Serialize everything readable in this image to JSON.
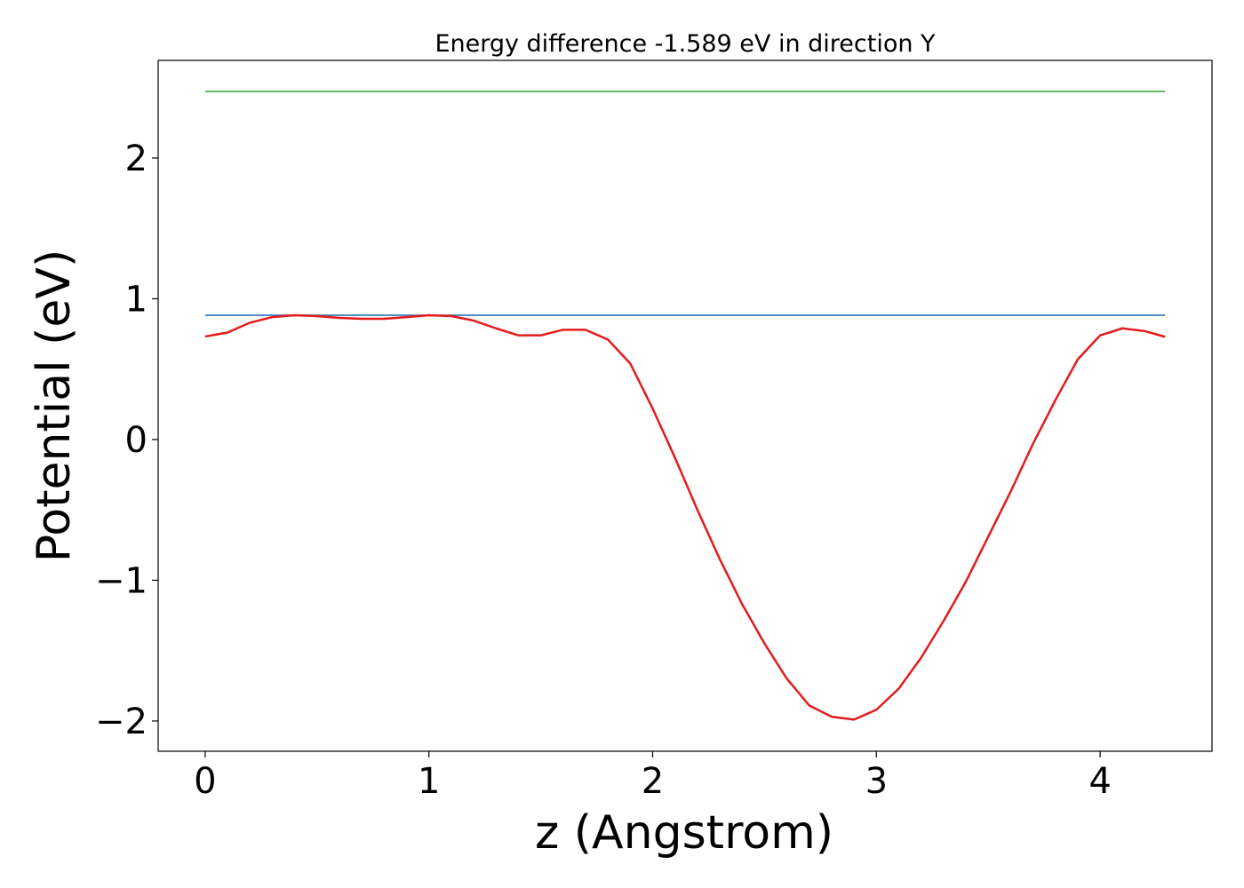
{
  "chart_data": {
    "type": "line",
    "title": "Energy difference -1.589 eV in direction Y",
    "x_label": "z (Angstrom)",
    "y_label": "Potential (eV)",
    "xlim": [
      -0.21,
      4.5
    ],
    "ylim": [
      -2.215,
      2.694
    ],
    "xticks": [
      0,
      1,
      2,
      3,
      4
    ],
    "yticks": [
      {
        "value": -2,
        "label": "−2"
      },
      {
        "value": -1,
        "label": "−1"
      },
      0,
      1,
      2
    ],
    "series": [
      {
        "color": "#e41a1c",
        "x": [
          0,
          0.1,
          0.2,
          0.3,
          0.4,
          0.5,
          0.6,
          0.7,
          0.8,
          0.9,
          1.0,
          1.1,
          1.2,
          1.3,
          1.4,
          1.5,
          1.6,
          1.7,
          1.8,
          1.9,
          2.0,
          2.1,
          2.2,
          2.3,
          2.4,
          2.5,
          2.6,
          2.7,
          2.8,
          2.9,
          3.0,
          3.1,
          3.2,
          3.3,
          3.4,
          3.5,
          3.6,
          3.7,
          3.8,
          3.9,
          4.0,
          4.1,
          4.2,
          4.29
        ],
        "values": [
          0.732,
          0.76,
          0.83,
          0.87,
          0.883,
          0.877,
          0.864,
          0.858,
          0.858,
          0.87,
          0.883,
          0.877,
          0.845,
          0.79,
          0.74,
          0.74,
          0.78,
          0.78,
          0.71,
          0.54,
          0.22,
          -0.13,
          -0.5,
          -0.85,
          -1.17,
          -1.45,
          -1.7,
          -1.89,
          -1.97,
          -1.99,
          -1.92,
          -1.77,
          -1.55,
          -1.29,
          -1.01,
          -0.69,
          -0.37,
          -0.03,
          0.28,
          0.57,
          0.74,
          0.79,
          0.77,
          0.73
        ]
      },
      {
        "color": "#377eb8",
        "x": [
          0,
          4.29
        ],
        "values": [
          0.883,
          0.883
        ]
      },
      {
        "color": "#4daf4a",
        "x": [
          0,
          4.29
        ],
        "values": [
          2.473,
          2.473
        ]
      }
    ]
  }
}
